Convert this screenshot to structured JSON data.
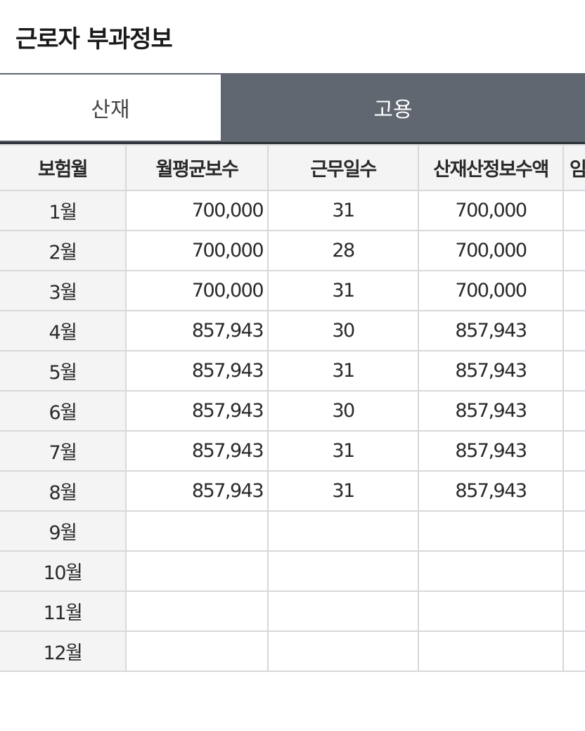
{
  "page": {
    "title": "근로자 부과정보"
  },
  "tabs": [
    {
      "label": "산재",
      "active": false
    },
    {
      "label": "고용",
      "active": true
    }
  ],
  "table": {
    "headers": [
      "보험월",
      "월평균보수",
      "근무일수",
      "산재산정보수액",
      "임"
    ],
    "rows": [
      {
        "month": "1월",
        "avg_pay": "700,000",
        "days": "31",
        "calc_pay": "700,000"
      },
      {
        "month": "2월",
        "avg_pay": "700,000",
        "days": "28",
        "calc_pay": "700,000"
      },
      {
        "month": "3월",
        "avg_pay": "700,000",
        "days": "31",
        "calc_pay": "700,000"
      },
      {
        "month": "4월",
        "avg_pay": "857,943",
        "days": "30",
        "calc_pay": "857,943"
      },
      {
        "month": "5월",
        "avg_pay": "857,943",
        "days": "31",
        "calc_pay": "857,943"
      },
      {
        "month": "6월",
        "avg_pay": "857,943",
        "days": "30",
        "calc_pay": "857,943"
      },
      {
        "month": "7월",
        "avg_pay": "857,943",
        "days": "31",
        "calc_pay": "857,943"
      },
      {
        "month": "8월",
        "avg_pay": "857,943",
        "days": "31",
        "calc_pay": "857,943"
      },
      {
        "month": "9월",
        "avg_pay": "",
        "days": "",
        "calc_pay": ""
      },
      {
        "month": "10월",
        "avg_pay": "",
        "days": "",
        "calc_pay": ""
      },
      {
        "month": "11월",
        "avg_pay": "",
        "days": "",
        "calc_pay": ""
      },
      {
        "month": "12월",
        "avg_pay": "",
        "days": "",
        "calc_pay": ""
      }
    ]
  },
  "colors": {
    "active_tab_bg": "#616771",
    "header_bg": "#f4f4f5",
    "grid_line": "#d8d8dc",
    "table_top_border": "#2b2f36"
  }
}
